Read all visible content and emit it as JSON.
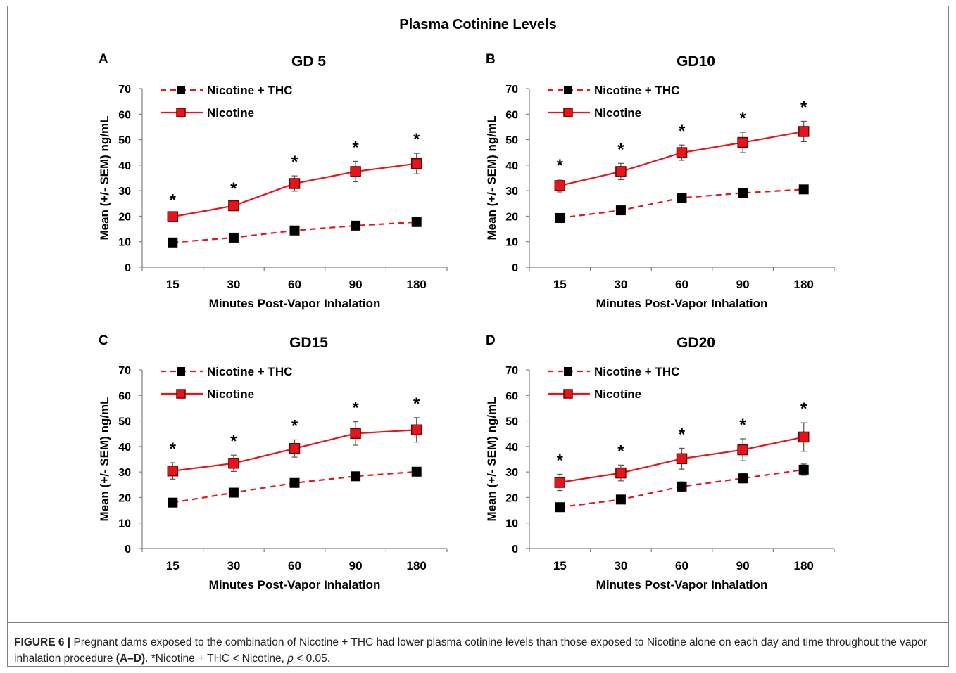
{
  "figure_title": "Plasma Cotinine Levels",
  "caption": {
    "label": "FIGURE 6 |",
    "text1": " Pregnant dams exposed to the combination of Nicotine + THC had lower plasma cotinine levels than those exposed to Nicotine alone on each day and time throughout the vapor inhalation procedure ",
    "panels_ref": "(A–D)",
    "text2": ". *Nicotine + THC < Nicotine, ",
    "p_symbol": "p",
    "text3": " < 0.05."
  },
  "colors": {
    "series_red": "#e8141b",
    "marker_black": "#000000",
    "axis": "#7f7f7f"
  },
  "chart_data": [
    {
      "panel": "A",
      "type": "line",
      "title": "GD 5",
      "xlabel": "Minutes Post-Vapor Inhalation",
      "ylabel": "Mean (+/- SEM) ng/mL",
      "categories": [
        "15",
        "30",
        "60",
        "90",
        "180"
      ],
      "ylim": [
        0,
        70
      ],
      "yticks": [
        0,
        10,
        20,
        30,
        40,
        50,
        60,
        70
      ],
      "legend": "top-left",
      "series": [
        {
          "name": "Nicotine + THC",
          "style": "dashed",
          "marker": "black-square",
          "values": [
            9.7,
            11.6,
            14.4,
            16.3,
            17.7
          ],
          "err": [
            0.6,
            0.6,
            0.7,
            0.7,
            0.8
          ]
        },
        {
          "name": "Nicotine",
          "style": "solid",
          "marker": "red-square",
          "values": [
            19.8,
            24.1,
            32.8,
            37.5,
            40.6
          ],
          "err": [
            1.0,
            1.2,
            3.0,
            4.0,
            4.0
          ]
        }
      ],
      "annotations": [
        "*",
        "*",
        "*",
        "*",
        "*"
      ]
    },
    {
      "panel": "B",
      "type": "line",
      "title": "GD10",
      "xlabel": "Minutes Post-Vapor Inhalation",
      "ylabel": "Mean (+/- SEM) ng/mL",
      "categories": [
        "15",
        "30",
        "60",
        "90",
        "180"
      ],
      "ylim": [
        0,
        70
      ],
      "yticks": [
        0,
        10,
        20,
        30,
        40,
        50,
        60,
        70
      ],
      "legend": "top-left",
      "series": [
        {
          "name": "Nicotine + THC",
          "style": "dashed",
          "marker": "black-square",
          "values": [
            19.3,
            22.3,
            27.2,
            29.1,
            30.5
          ],
          "err": [
            0.7,
            1.0,
            1.2,
            1.0,
            1.0
          ]
        },
        {
          "name": "Nicotine",
          "style": "solid",
          "marker": "red-square",
          "values": [
            32.0,
            37.5,
            44.9,
            48.9,
            53.2
          ],
          "err": [
            2.5,
            3.2,
            3.0,
            4.0,
            4.0
          ]
        }
      ],
      "annotations": [
        "*",
        "*",
        "*",
        "*",
        "*"
      ]
    },
    {
      "panel": "C",
      "type": "line",
      "title": "GD15",
      "xlabel": "Minutes Post-Vapor Inhalation",
      "ylabel": "Mean (+/- SEM) ng/mL",
      "categories": [
        "15",
        "30",
        "60",
        "90",
        "180"
      ],
      "ylim": [
        0,
        70
      ],
      "yticks": [
        0,
        10,
        20,
        30,
        40,
        50,
        60,
        70
      ],
      "legend": "top-left",
      "series": [
        {
          "name": "Nicotine + THC",
          "style": "dashed",
          "marker": "black-square",
          "values": [
            18.0,
            21.9,
            25.7,
            28.3,
            30.1
          ],
          "err": [
            0.6,
            0.8,
            1.2,
            1.5,
            1.5
          ]
        },
        {
          "name": "Nicotine",
          "style": "solid",
          "marker": "red-square",
          "values": [
            30.4,
            33.4,
            39.2,
            45.1,
            46.5
          ],
          "err": [
            3.2,
            3.2,
            3.4,
            4.6,
            4.8
          ]
        }
      ],
      "annotations": [
        "*",
        "*",
        "*",
        "*",
        "*"
      ]
    },
    {
      "panel": "D",
      "type": "line",
      "title": "GD20",
      "xlabel": "Minutes Post-Vapor Inhalation",
      "ylabel": "Mean (+/- SEM) ng/mL",
      "categories": [
        "15",
        "30",
        "60",
        "90",
        "180"
      ],
      "ylim": [
        0,
        70
      ],
      "yticks": [
        0,
        10,
        20,
        30,
        40,
        50,
        60,
        70
      ],
      "legend": "top-left",
      "series": [
        {
          "name": "Nicotine + THC",
          "style": "dashed",
          "marker": "black-square",
          "values": [
            16.2,
            19.2,
            24.3,
            27.5,
            30.9
          ],
          "err": [
            0.6,
            0.8,
            1.8,
            1.8,
            2.2
          ]
        },
        {
          "name": "Nicotine",
          "style": "solid",
          "marker": "red-square",
          "values": [
            25.9,
            29.6,
            35.2,
            38.7,
            43.7
          ],
          "err": [
            3.2,
            3.1,
            4.1,
            4.3,
            5.6
          ]
        }
      ],
      "annotations": [
        "*",
        "*",
        "*",
        "*",
        "*"
      ]
    }
  ]
}
